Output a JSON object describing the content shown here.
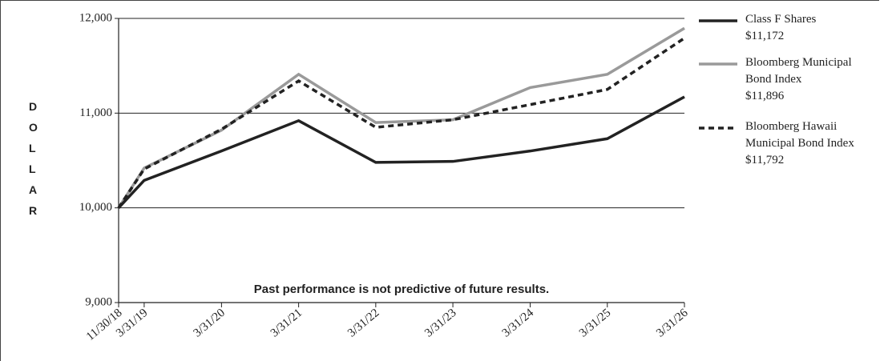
{
  "chart_data": {
    "type": "line",
    "y_label": "DOLLAR",
    "annotation": "Past performance is not predictive of future results.",
    "x": [
      "11/30/18",
      "3/31/19",
      "3/31/20",
      "3/31/21",
      "3/31/22",
      "3/31/23",
      "3/31/24",
      "3/31/25",
      "3/31/26"
    ],
    "xlim": [
      "11/30/18",
      "3/31/26"
    ],
    "ylim": [
      9000,
      12000
    ],
    "yticks": [
      {
        "value": 9000,
        "label": "9,000"
      },
      {
        "value": 10000,
        "label": "10,000"
      },
      {
        "value": 11000,
        "label": "11,000"
      },
      {
        "value": 12000,
        "label": "12,000"
      }
    ],
    "grid": true,
    "legend": "right",
    "series": [
      {
        "name": "Class F Shares",
        "color": "#222222",
        "dashed": false,
        "values": [
          10000,
          10290,
          10600,
          10920,
          10480,
          10490,
          10600,
          10730,
          11172
        ],
        "value_labels": [
          null,
          null,
          null,
          null,
          null,
          null,
          null,
          null,
          "$11,172"
        ]
      },
      {
        "name": "Bloomberg Municipal Bond Index",
        "color": "#9a9a9a",
        "dashed": false,
        "values": [
          10000,
          10420,
          10820,
          11410,
          10900,
          10930,
          11270,
          11410,
          11896
        ],
        "value_labels": [
          null,
          null,
          null,
          null,
          null,
          null,
          null,
          null,
          "$11,896"
        ]
      },
      {
        "name": "Bloomberg Hawaii Municipal Bond Index",
        "color": "#222222",
        "dashed": true,
        "values": [
          10000,
          10410,
          10830,
          11340,
          10850,
          10930,
          11090,
          11250,
          11792
        ],
        "value_labels": [
          null,
          null,
          null,
          null,
          null,
          null,
          null,
          null,
          "$11,792"
        ]
      }
    ]
  }
}
